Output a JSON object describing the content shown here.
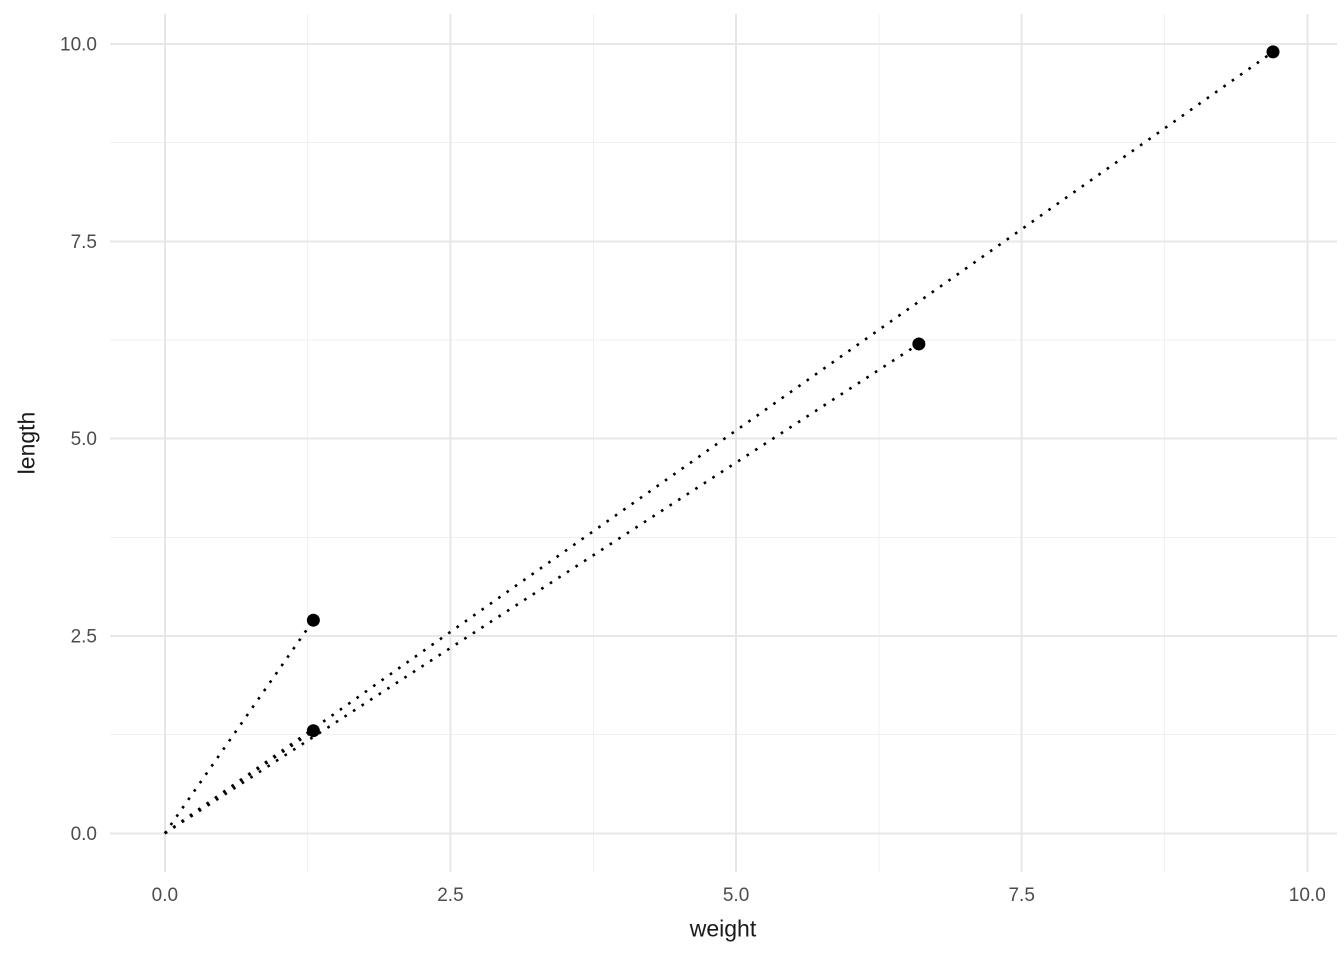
{
  "figure": {
    "background": "#ffffff"
  },
  "chart_data": {
    "type": "scatter",
    "title": "",
    "xlabel": "weight",
    "ylabel": "length",
    "xlim": [
      -0.48,
      10.26
    ],
    "ylim": [
      -0.49,
      10.38
    ],
    "x_tick_values": [
      0,
      2.5,
      5,
      7.5,
      10
    ],
    "x_tick_labels": [
      "0.0",
      "2.5",
      "5.0",
      "7.5",
      "10.0"
    ],
    "y_tick_values": [
      0,
      2.5,
      5,
      7.5,
      10
    ],
    "y_tick_labels": [
      "0.0",
      "2.5",
      "5.0",
      "7.5",
      "10.0"
    ],
    "x_minor_ticks": [
      1.25,
      3.75,
      6.25,
      8.75
    ],
    "y_minor_ticks": [
      1.25,
      3.75,
      6.25,
      8.75
    ],
    "grid": "on",
    "legend": "none",
    "points": [
      {
        "x": 1.3,
        "y": 1.3
      },
      {
        "x": 1.3,
        "y": 2.7
      },
      {
        "x": 6.6,
        "y": 6.2
      },
      {
        "x": 9.7,
        "y": 9.9
      }
    ],
    "segments": [
      {
        "x1": 0,
        "y1": 0,
        "x2": 1.3,
        "y2": 1.3
      },
      {
        "x1": 0,
        "y1": 0,
        "x2": 1.3,
        "y2": 2.7
      },
      {
        "x1": 0,
        "y1": 0,
        "x2": 6.6,
        "y2": 6.2
      },
      {
        "x1": 0,
        "y1": 0,
        "x2": 9.7,
        "y2": 9.9
      }
    ],
    "styles": {
      "point_color": "#000000",
      "point_radius": 6.5,
      "segment_color": "#000000",
      "segment_style": "dotted",
      "grid_major_color": "#e7e7e7",
      "grid_minor_color": "#f0f0f0",
      "tick_label_color": "#4d4d4d",
      "axis_title_color": "#1a1a1a"
    }
  }
}
